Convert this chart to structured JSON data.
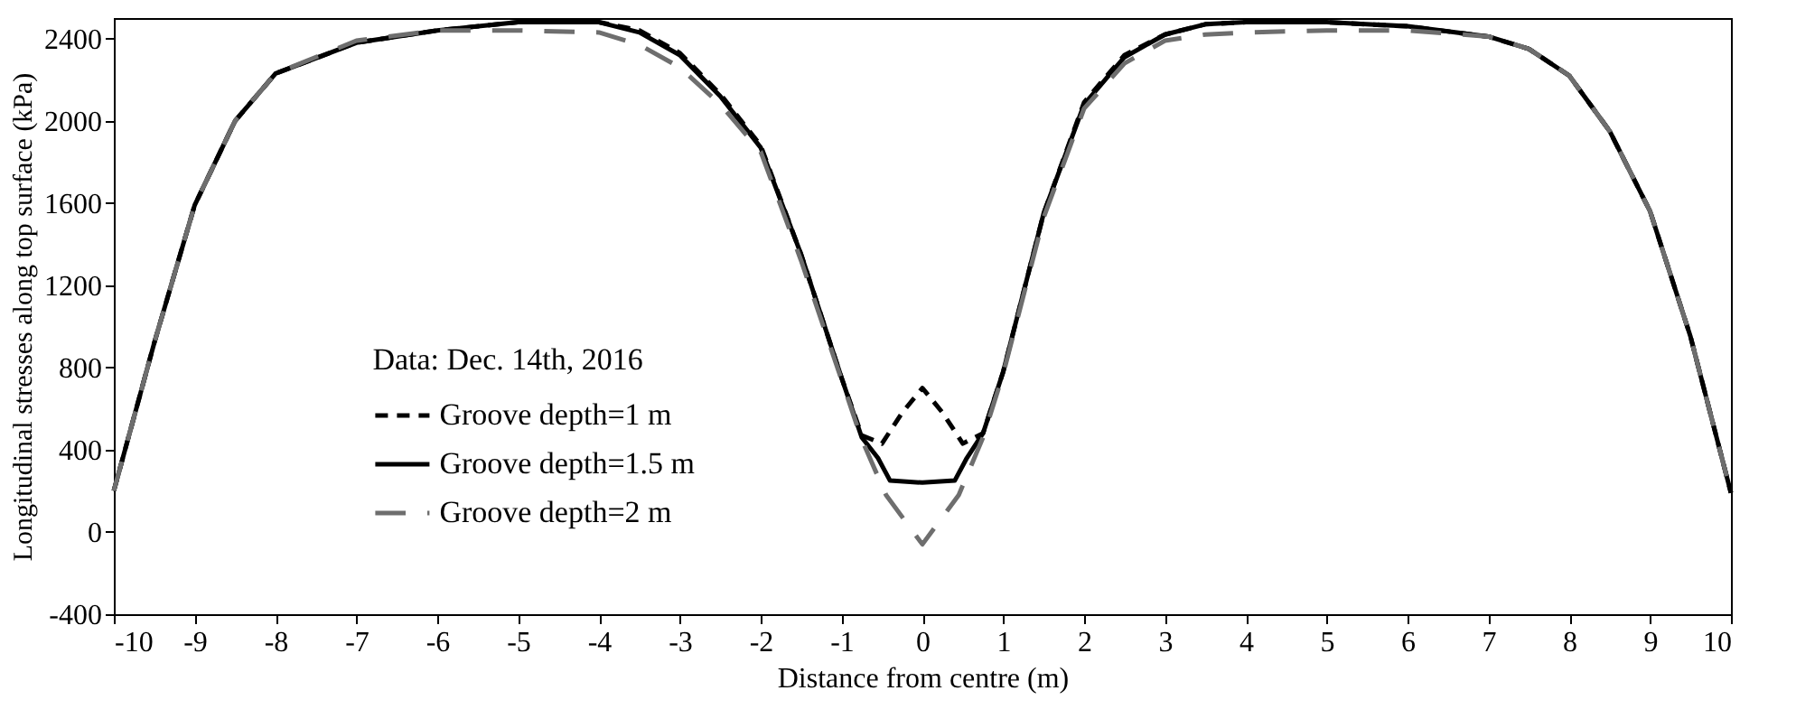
{
  "chart_data": {
    "type": "line",
    "xlabel": "Distance from centre (m)",
    "ylabel": "Longitudinal stresses along top surface (kPa)",
    "legend_title": "Data: Dec. 14th, 2016",
    "legend": "bottom left",
    "grid": false,
    "marker": "none",
    "xlim": [
      -10,
      10
    ],
    "xticks": [
      -10,
      -9,
      -8,
      -7,
      -6,
      -5,
      -4,
      -3,
      -2,
      -1,
      0,
      1,
      2,
      3,
      4,
      5,
      6,
      7,
      8,
      9,
      10
    ],
    "ylim": [
      -400,
      2500
    ],
    "yticks": [
      -400,
      0,
      400,
      800,
      1200,
      1600,
      2000,
      2400
    ],
    "series": [
      {
        "name": "Groove depth=1 m",
        "color": "#000000",
        "line_style": "dashed",
        "x": [
          -10,
          -9.5,
          -9,
          -8.5,
          -8,
          -7,
          -6,
          -5,
          -4,
          -3.5,
          -3,
          -2.5,
          -2,
          -1.5,
          -1,
          -0.75,
          -0.5,
          -0.25,
          0,
          0.25,
          0.5,
          0.75,
          1,
          1.5,
          2,
          2.5,
          3,
          3.5,
          4,
          5,
          6,
          7,
          7.5,
          8,
          8.5,
          9,
          9.5,
          10
        ],
        "values": [
          200,
          920,
          1590,
          2000,
          2230,
          2380,
          2440,
          2480,
          2480,
          2440,
          2330,
          2130,
          1880,
          1350,
          750,
          470,
          430,
          580,
          700,
          580,
          430,
          480,
          780,
          1550,
          2090,
          2320,
          2420,
          2470,
          2480,
          2480,
          2460,
          2410,
          2350,
          2220,
          1950,
          1560,
          950,
          190
        ]
      },
      {
        "name": "Groove depth=1.5 m",
        "color": "#000000",
        "line_style": "solid",
        "x": [
          -10,
          -9.5,
          -9,
          -8.5,
          -8,
          -7,
          -6,
          -5,
          -4,
          -3.5,
          -3,
          -2.5,
          -2,
          -1.5,
          -1,
          -0.75,
          -0.55,
          -0.4,
          0,
          0.4,
          0.55,
          0.75,
          1,
          1.5,
          2,
          2.5,
          3,
          3.5,
          4,
          5,
          6,
          7,
          7.5,
          8,
          8.5,
          9,
          9.5,
          10
        ],
        "values": [
          200,
          920,
          1590,
          2000,
          2230,
          2380,
          2440,
          2480,
          2480,
          2430,
          2320,
          2120,
          1870,
          1350,
          750,
          460,
          360,
          250,
          240,
          250,
          360,
          480,
          780,
          1550,
          2080,
          2310,
          2420,
          2470,
          2480,
          2480,
          2460,
          2410,
          2350,
          2220,
          1950,
          1560,
          950,
          190
        ]
      },
      {
        "name": "Groove depth=2 m",
        "color": "#6e6e6e",
        "line_style": "dashed",
        "x": [
          -10,
          -9.5,
          -9,
          -8.5,
          -8,
          -7,
          -6,
          -5,
          -4,
          -3.5,
          -3,
          -2.5,
          -2,
          -1.5,
          -1,
          -0.75,
          -0.45,
          0,
          0.45,
          0.75,
          1,
          1.5,
          2,
          2.5,
          3,
          3.5,
          4,
          5,
          6,
          7,
          7.5,
          8,
          8.5,
          9,
          9.5,
          10
        ],
        "values": [
          200,
          920,
          1590,
          2000,
          2230,
          2390,
          2440,
          2440,
          2430,
          2370,
          2260,
          2080,
          1850,
          1320,
          740,
          450,
          180,
          -60,
          180,
          460,
          770,
          1530,
          2060,
          2280,
          2390,
          2420,
          2430,
          2440,
          2440,
          2410,
          2350,
          2220,
          1950,
          1560,
          950,
          190
        ]
      }
    ]
  }
}
